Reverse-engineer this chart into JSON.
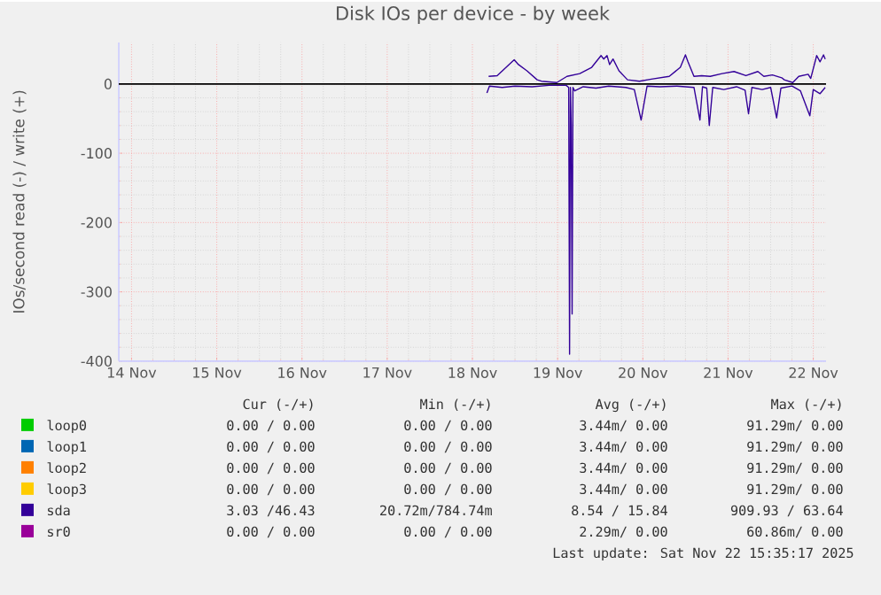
{
  "chart_data": {
    "type": "line",
    "title": "Disk IOs per device - by week",
    "ylabel": "IOs/second read (-) / write (+)",
    "xlim": [
      "2025-11-13T20:24",
      "2025-11-22T03:36"
    ],
    "ylim": [
      -400,
      60
    ],
    "xticks": [
      {
        "value": "2025-11-14",
        "label": "14 Nov"
      },
      {
        "value": "2025-11-15",
        "label": "15 Nov"
      },
      {
        "value": "2025-11-16",
        "label": "16 Nov"
      },
      {
        "value": "2025-11-17",
        "label": "17 Nov"
      },
      {
        "value": "2025-11-18",
        "label": "18 Nov"
      },
      {
        "value": "2025-11-19",
        "label": "19 Nov"
      },
      {
        "value": "2025-11-20",
        "label": "20 Nov"
      },
      {
        "value": "2025-11-21",
        "label": "21 Nov"
      },
      {
        "value": "2025-11-22",
        "label": "22 Nov"
      }
    ],
    "yticks": [
      -400,
      -300,
      -200,
      -100,
      0
    ],
    "grid": true,
    "legend": "bottom",
    "ref_lines": [
      {
        "axis": "y",
        "value": 0,
        "color": "#000000"
      }
    ],
    "series": [
      {
        "name": "loop0",
        "color": "#00cc00"
      },
      {
        "name": "loop1",
        "color": "#0066b3"
      },
      {
        "name": "loop2",
        "color": "#ff8000"
      },
      {
        "name": "loop3",
        "color": "#ffcc00"
      },
      {
        "name": "sda",
        "color": "#330099",
        "x": [
          "2025-11-18T04:34",
          "2025-11-18T06:58",
          "2025-11-18T11:46",
          "2025-11-18T12:58",
          "2025-11-18T15:22",
          "2025-11-18T18:14",
          "2025-11-18T19:26",
          "2025-11-18T23:46",
          "2025-11-19T02:38",
          "2025-11-19T06:14",
          "2025-11-19T09:36",
          "2025-11-19T12:14",
          "2025-11-19T12:58",
          "2025-11-19T13:55",
          "2025-11-19T14:38",
          "2025-11-19T15:36",
          "2025-11-19T17:17",
          "2025-11-19T19:41",
          "2025-11-19T23:02",
          "2025-11-20T02:24",
          "2025-11-20T07:26",
          "2025-11-20T10:34",
          "2025-11-20T12:00",
          "2025-11-20T12:43",
          "2025-11-20T14:24",
          "2025-11-20T16:34",
          "2025-11-20T18:58",
          "2025-11-20T22:19",
          "2025-11-21T01:41",
          "2025-11-21T05:02",
          "2025-11-21T08:24",
          "2025-11-21T10:05",
          "2025-11-21T12:29",
          "2025-11-21T15:07",
          "2025-11-21T15:50",
          "2025-11-21T18:14",
          "2025-11-21T19:55",
          "2025-11-21T22:34",
          "2025-11-21T23:17",
          "2025-11-22T00:58",
          "2025-11-22T01:55",
          "2025-11-22T02:53",
          "2025-11-22T03:22"
        ],
        "values": [
          11,
          12,
          35,
          28,
          19,
          6,
          4,
          2,
          11,
          15,
          24,
          41,
          36,
          41,
          28,
          36,
          19,
          6,
          4,
          7,
          11,
          24,
          42,
          32,
          11,
          12,
          11,
          15,
          18,
          12,
          18,
          11,
          13,
          9,
          6,
          2,
          11,
          14,
          8,
          41,
          32,
          42,
          36
        ]
      },
      {
        "color": "#330099",
        "x": [
          "2025-11-18T04:05",
          "2025-11-18T04:48",
          "2025-11-18T08:24",
          "2025-11-18T12:00",
          "2025-11-18T16:48",
          "2025-11-18T21:36",
          "2025-11-19T02:24",
          "2025-11-19T03:07",
          "2025-11-19T03:22",
          "2025-11-19T03:36",
          "2025-11-19T03:50",
          "2025-11-19T04:05",
          "2025-11-19T04:19",
          "2025-11-19T04:48",
          "2025-11-19T07:12",
          "2025-11-19T10:48",
          "2025-11-19T14:24",
          "2025-11-19T19:12",
          "2025-11-19T21:36",
          "2025-11-19T23:31",
          "2025-11-20T01:12",
          "2025-11-20T04:48",
          "2025-11-20T09:36",
          "2025-11-20T14:24",
          "2025-11-20T16:05",
          "2025-11-20T16:48",
          "2025-11-20T18:00",
          "2025-11-20T18:43",
          "2025-11-20T19:41",
          "2025-11-20T22:48",
          "2025-11-21T02:24",
          "2025-11-21T04:48",
          "2025-11-21T05:46",
          "2025-11-21T06:43",
          "2025-11-21T09:36",
          "2025-11-21T12:00",
          "2025-11-21T13:41",
          "2025-11-21T14:53",
          "2025-11-21T18:00",
          "2025-11-21T20:24",
          "2025-11-21T23:02",
          "2025-11-22T00:00",
          "2025-11-22T01:55",
          "2025-11-22T03:22"
        ],
        "values": [
          -13,
          -3,
          -5,
          -3,
          -4,
          -2,
          -2,
          -5,
          -390,
          -5,
          -62,
          -332,
          -5,
          -10,
          -4,
          -6,
          -3,
          -5,
          -8,
          -52,
          -3,
          -4,
          -3,
          -5,
          -52,
          -4,
          -6,
          -60,
          -5,
          -8,
          -4,
          -9,
          -43,
          -5,
          -8,
          -5,
          -49,
          -6,
          -3,
          -10,
          -46,
          -8,
          -14,
          -5
        ]
      },
      {
        "name": "sr0",
        "color": "#990099"
      }
    ],
    "annotations": [
      "Cur (-/+)",
      "Min (-/+)",
      "Avg (-/+)",
      "Max (-/+)",
      "0.00 / 0.00",
      "0.00 / 0.00",
      "3.44m/ 0.00",
      "91.29m/ 0.00",
      "0.00 / 0.00",
      "0.00 / 0.00",
      "3.44m/ 0.00",
      "91.29m/ 0.00",
      "0.00 / 0.00",
      "0.00 / 0.00",
      "3.44m/ 0.00",
      "91.29m/ 0.00",
      "0.00 / 0.00",
      "0.00 / 0.00",
      "3.44m/ 0.00",
      "91.29m/ 0.00",
      "3.03 /46.43",
      "20.72m/784.74m",
      "8.54 / 15.84",
      "909.93 / 63.64",
      "0.00 / 0.00",
      "0.00 / 0.00",
      "2.29m/ 0.00",
      "60.86m/ 0.00",
      "Last update: Sat Nov 22 15:35:17 2025"
    ]
  }
}
